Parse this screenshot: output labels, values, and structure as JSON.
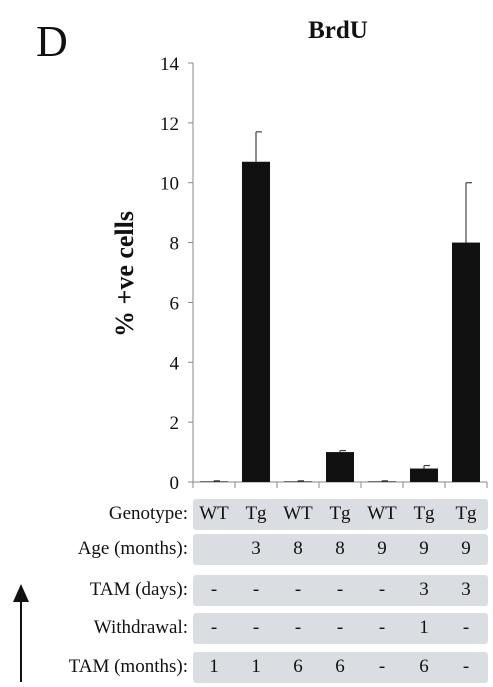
{
  "panel_letter": "D",
  "chart_data": {
    "type": "bar",
    "title": "BrdU",
    "ylabel": "% +ve cells",
    "xlabel": "",
    "ylim": [
      0,
      14
    ],
    "yticks": [
      0,
      2,
      4,
      6,
      8,
      10,
      12,
      14
    ],
    "grid": false,
    "values": [
      0.02,
      10.7,
      0.02,
      1.0,
      0.02,
      0.45,
      8.0
    ],
    "errors": [
      0.02,
      1.0,
      0.02,
      0.05,
      0.02,
      0.1,
      2.0
    ]
  },
  "table": {
    "rows": [
      {
        "label": "Genotype:",
        "cells": [
          "WT",
          "Tg",
          "WT",
          "Tg",
          "WT",
          "Tg",
          "Tg"
        ]
      },
      {
        "label": "Age (months):",
        "cells": [
          "",
          "3",
          "8",
          "8",
          "9",
          "9",
          "9"
        ]
      },
      {
        "label": "TAM (days):",
        "cells": [
          "-",
          "-",
          "-",
          "-",
          "-",
          "3",
          "3"
        ]
      },
      {
        "label": "Withdrawal:",
        "cells": [
          "-",
          "-",
          "-",
          "-",
          "-",
          "1",
          "-"
        ]
      },
      {
        "label": "TAM (months):",
        "cells": [
          "1",
          "1",
          "6",
          "6",
          "-",
          "6",
          "-"
        ]
      }
    ]
  }
}
